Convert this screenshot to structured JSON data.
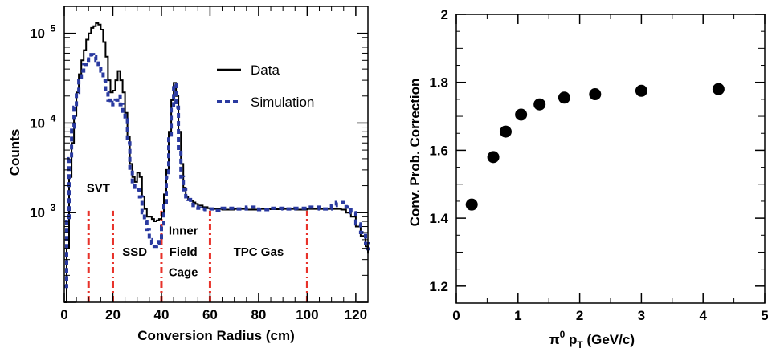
{
  "chart_data": [
    {
      "type": "line",
      "xlabel": "Conversion Radius (cm)",
      "ylabel": "Counts",
      "xlim": [
        0,
        125
      ],
      "ylim": [
        100,
        200000
      ],
      "y_scale": "log",
      "x_ticks": [
        0,
        20,
        40,
        60,
        80,
        100,
        120
      ],
      "y_ticks": [
        {
          "value": 1000,
          "base": "10",
          "exp": "3"
        },
        {
          "value": 10000,
          "base": "10",
          "exp": "4"
        },
        {
          "value": 100000,
          "base": "10",
          "exp": "5"
        }
      ],
      "legend": {
        "position": "top-right",
        "entries": [
          "Data",
          "Simulation"
        ]
      },
      "colors": {
        "data": "#000000",
        "simulation": "#2a3aa0",
        "boundaries": "#e8322a"
      },
      "series": [
        {
          "name": "Data",
          "style": "solid-step",
          "x": [
            0,
            1,
            2,
            3,
            4,
            5,
            6,
            7,
            8,
            9,
            10,
            11,
            12,
            13,
            14,
            15,
            16,
            17,
            18,
            19,
            20,
            21,
            22,
            23,
            24,
            25,
            26,
            27,
            28,
            29,
            30,
            31,
            32,
            33,
            34,
            35,
            36,
            37,
            38,
            39,
            40,
            41,
            42,
            43,
            44,
            45,
            46,
            47,
            48,
            49,
            50,
            51,
            52,
            53,
            54,
            55,
            56,
            57,
            58,
            59,
            60,
            62,
            65,
            70,
            75,
            80,
            85,
            90,
            95,
            100,
            105,
            110,
            112,
            114,
            116,
            118,
            120,
            122,
            124,
            125
          ],
          "values": [
            100,
            400,
            2500,
            6000,
            12000,
            22000,
            35000,
            50000,
            65000,
            85000,
            100000,
            115000,
            120000,
            130000,
            125000,
            110000,
            80000,
            55000,
            30000,
            22000,
            23000,
            30000,
            38000,
            30000,
            22000,
            13000,
            7000,
            3500,
            2500,
            2200,
            2800,
            2500,
            1500,
            1100,
            900,
            900,
            850,
            800,
            820,
            850,
            1000,
            1600,
            3000,
            8000,
            18000,
            28000,
            20000,
            8000,
            3500,
            1900,
            1500,
            1400,
            1350,
            1300,
            1250,
            1200,
            1200,
            1150,
            1150,
            1120,
            1100,
            1100,
            1080,
            1100,
            1080,
            1100,
            1090,
            1100,
            1080,
            1100,
            1100,
            1100,
            1100,
            1080,
            1000,
            900,
            700,
            550,
            420,
            350
          ]
        },
        {
          "name": "Simulation",
          "style": "dashed-step",
          "x": [
            0,
            1,
            2,
            3,
            4,
            5,
            6,
            7,
            8,
            9,
            10,
            11,
            12,
            13,
            14,
            15,
            16,
            17,
            18,
            19,
            20,
            21,
            22,
            23,
            24,
            25,
            26,
            27,
            28,
            29,
            30,
            31,
            32,
            33,
            34,
            35,
            36,
            37,
            38,
            39,
            40,
            41,
            42,
            43,
            44,
            45,
            46,
            47,
            48,
            49,
            50,
            51,
            52,
            53,
            54,
            55,
            56,
            57,
            58,
            59,
            60,
            62,
            65,
            70,
            75,
            80,
            85,
            90,
            95,
            100,
            105,
            110,
            112,
            114,
            116,
            118,
            120,
            122,
            124,
            125
          ],
          "values": [
            150,
            800,
            4000,
            9000,
            15000,
            22000,
            30000,
            38000,
            45000,
            50000,
            55000,
            58000,
            55000,
            50000,
            45000,
            38000,
            30000,
            22000,
            18000,
            16000,
            17000,
            18000,
            20000,
            16000,
            13000,
            11000,
            6000,
            3000,
            2000,
            1800,
            1800,
            1500,
            1000,
            800,
            650,
            500,
            450,
            420,
            450,
            500,
            700,
            1200,
            2500,
            7000,
            15000,
            27000,
            15000,
            5000,
            2500,
            1800,
            1500,
            1400,
            1300,
            1200,
            1150,
            1120,
            1100,
            1100,
            1080,
            1100,
            1100,
            1050,
            1120,
            1100,
            1150,
            1080,
            1120,
            1100,
            1120,
            1150,
            1100,
            1200,
            1300,
            1300,
            1150,
            1000,
            750,
            600,
            450,
            380
          ]
        }
      ],
      "boundaries": [
        10,
        20,
        40,
        60,
        100
      ],
      "region_labels": [
        {
          "text": "SVT",
          "x": 14,
          "y": 1700
        },
        {
          "text": "SSD",
          "x": 29,
          "y": 330
        },
        {
          "text": "Inner",
          "x": 49,
          "y": 570
        },
        {
          "text": "Field",
          "x": 49,
          "y": 330
        },
        {
          "text": "Cage",
          "x": 49,
          "y": 195
        },
        {
          "text": "TPC Gas",
          "x": 80,
          "y": 330
        }
      ]
    },
    {
      "type": "scatter",
      "xlabel_main": "π",
      "xlabel_sup": "0",
      "xlabel_p": " p",
      "xlabel_sub": "T",
      "xlabel_unit": " (GeV/c)",
      "ylabel": "Conv. Prob. Correction",
      "xlim": [
        0,
        5
      ],
      "ylim": [
        1.15,
        2.0
      ],
      "x_ticks": [
        0,
        1,
        2,
        3,
        4,
        5
      ],
      "y_ticks": [
        1.2,
        1.4,
        1.6,
        1.8,
        2
      ],
      "y_tick_labels": [
        "1.2",
        "1.4",
        "1.6",
        "1.8",
        "2"
      ],
      "x": [
        0.25,
        0.6,
        0.8,
        1.05,
        1.35,
        1.75,
        2.25,
        3.0,
        4.25
      ],
      "values": [
        1.44,
        1.58,
        1.655,
        1.705,
        1.735,
        1.755,
        1.765,
        1.775,
        1.78
      ]
    }
  ]
}
